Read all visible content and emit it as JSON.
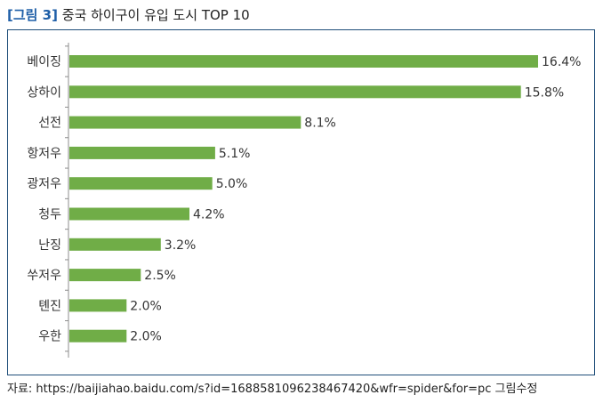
{
  "header": {
    "figure_tag": "[그림 3]",
    "title": "중국 하이구이 유입 도시 TOP 10"
  },
  "source": "자료: https://baijiahao.baidu.com/s?id=1688581096238467420&wfr=spider&for=pc 그림수정",
  "chart_data": {
    "type": "bar",
    "orientation": "horizontal",
    "title": "중국 하이구이 유입 도시 TOP 10",
    "categories": [
      "베이징",
      "상하이",
      "선전",
      "항저우",
      "광저우",
      "청두",
      "난징",
      "쑤저우",
      "톈진",
      "우한"
    ],
    "values": [
      16.4,
      15.8,
      8.1,
      5.1,
      5.0,
      4.2,
      3.2,
      2.5,
      2.0,
      2.0
    ],
    "data_labels": [
      "16.4%",
      "15.8%",
      "8.1%",
      "5.1%",
      "5.0%",
      "4.2%",
      "3.2%",
      "2.5%",
      "2.0%",
      "2.0%"
    ],
    "unit": "%",
    "xlim": [
      0,
      16.4
    ],
    "bar_color": "#70ad47",
    "grid": false,
    "legend": "none"
  }
}
